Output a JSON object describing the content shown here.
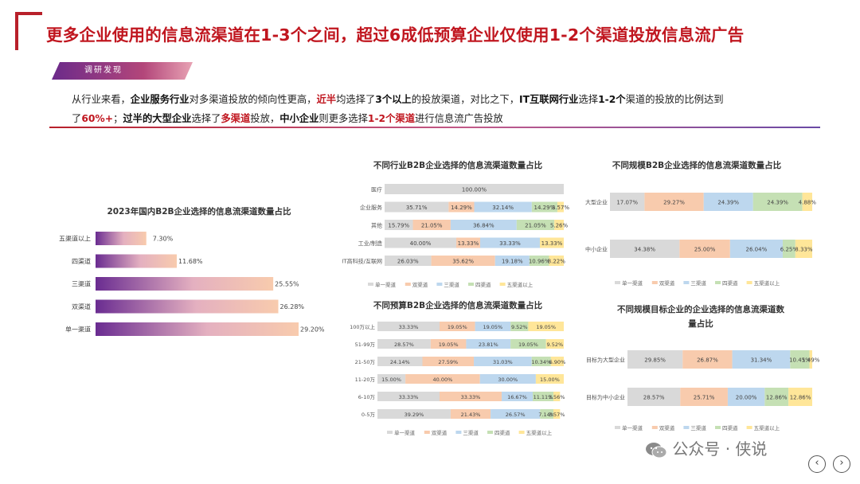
{
  "title": "更多企业使用的信息流渠道在1-3个之间，超过6成低预算企业仅使用1-2个渠道投放信息流广告",
  "tag": "调研发现",
  "description": {
    "line1": [
      {
        "t": "从行业来看，",
        "s": "n"
      },
      {
        "t": "企业服务行业",
        "s": "b"
      },
      {
        "t": "对多渠道投放的倾向性更高，",
        "s": "n"
      },
      {
        "t": "近半",
        "s": "h"
      },
      {
        "t": "均选择了",
        "s": "n"
      },
      {
        "t": "3个以上",
        "s": "b"
      },
      {
        "t": "的投放渠道，对比之下，",
        "s": "n"
      },
      {
        "t": "IT互联网行业",
        "s": "b"
      },
      {
        "t": "选择",
        "s": "n"
      },
      {
        "t": "1-2个",
        "s": "b"
      },
      {
        "t": "渠道的投放的比例达到",
        "s": "n"
      }
    ],
    "line2": [
      {
        "t": "了",
        "s": "n"
      },
      {
        "t": "60%+",
        "s": "h"
      },
      {
        "t": "；",
        "s": "n"
      },
      {
        "t": "过半的大型企业",
        "s": "b"
      },
      {
        "t": "选择了",
        "s": "n"
      },
      {
        "t": "多渠道",
        "s": "h"
      },
      {
        "t": "投放，",
        "s": "n"
      },
      {
        "t": "中小企业",
        "s": "b"
      },
      {
        "t": "则更多选择",
        "s": "n"
      },
      {
        "t": "1-2个渠道",
        "s": "h"
      },
      {
        "t": "进行信息流广告投放",
        "s": "n"
      }
    ]
  },
  "colors": {
    "single": "#d9d9d9",
    "double": "#f8cbad",
    "triple": "#bdd7ee",
    "quad": "#c5e0b4",
    "five": "#ffe699",
    "gradient_start": "#6a2c91",
    "gradient_end": "#f8cbad"
  },
  "legend_labels": [
    "单一渠道",
    "双渠道",
    "三渠道",
    "四渠道",
    "五渠道以上"
  ],
  "watermark": "公众号 · 侠说",
  "nav": {
    "prev": "‹",
    "next": "›"
  },
  "chart_data": [
    {
      "type": "bar",
      "orientation": "horizontal",
      "title": "2023年国内B2B企业选择的信息流渠道数量占比",
      "categories": [
        "五渠道以上",
        "四渠道",
        "三渠道",
        "双渠道",
        "单一渠道"
      ],
      "values": [
        7.3,
        11.68,
        25.55,
        26.28,
        29.2
      ],
      "labels": [
        "7.30%",
        "11.68%",
        "25.55%",
        "26.28%",
        "29.20%"
      ],
      "xlim": [
        0,
        29.2
      ]
    },
    {
      "type": "bar",
      "orientation": "horizontal",
      "stacked": true,
      "title": "不同行业B2B企业选择的信息流渠道数量占比",
      "categories": [
        "医疗",
        "企业服务",
        "其他",
        "工业/制造",
        "IT高科技/互联网"
      ],
      "series": [
        {
          "name": "单一渠道",
          "values": [
            100.0,
            35.71,
            15.79,
            40.0,
            26.03
          ]
        },
        {
          "name": "双渠道",
          "values": [
            0,
            14.29,
            21.05,
            13.33,
            35.62
          ]
        },
        {
          "name": "三渠道",
          "values": [
            0,
            32.14,
            36.84,
            33.33,
            19.18
          ]
        },
        {
          "name": "四渠道",
          "values": [
            0,
            14.29,
            21.05,
            0,
            10.96
          ]
        },
        {
          "name": "五渠道以上",
          "values": [
            0,
            3.57,
            5.26,
            13.33,
            8.22
          ]
        }
      ],
      "labels": [
        [
          "100.00%",
          "",
          "",
          "",
          ""
        ],
        [
          "35.71%",
          "14.29%",
          "32.14%",
          "14.29%",
          "3.57%"
        ],
        [
          "15.79%",
          "21.05%",
          "36.84%",
          "21.05%",
          "5.26%"
        ],
        [
          "40.00%",
          "13.33%",
          "33.33%",
          "",
          "13.33%"
        ],
        [
          "26.03%",
          "35.62%",
          "19.18%",
          "10.96%",
          "8.22%"
        ]
      ]
    },
    {
      "type": "bar",
      "orientation": "horizontal",
      "stacked": true,
      "title": "不同预算B2B企业选择的信息流渠道数量占比",
      "categories": [
        "100万以上",
        "51-99万",
        "21-50万",
        "11-20万",
        "6-10万",
        "0-5万"
      ],
      "series": [
        {
          "name": "单一渠道",
          "values": [
            33.33,
            28.57,
            24.14,
            15.0,
            33.33,
            39.29
          ]
        },
        {
          "name": "双渠道",
          "values": [
            19.05,
            19.05,
            27.59,
            40.0,
            33.33,
            21.43
          ]
        },
        {
          "name": "三渠道",
          "values": [
            19.05,
            23.81,
            31.03,
            30.0,
            16.67,
            26.57
          ]
        },
        {
          "name": "四渠道",
          "values": [
            9.52,
            19.05,
            10.34,
            0,
            11.11,
            7.14
          ]
        },
        {
          "name": "五渠道以上",
          "values": [
            19.05,
            9.52,
            6.9,
            15.0,
            3.56,
            3.57
          ]
        }
      ],
      "labels": [
        [
          "33.33%",
          "19.05%",
          "19.05%",
          "9.52%",
          "19.05%"
        ],
        [
          "28.57%",
          "19.05%",
          "23.81%",
          "19.05%",
          "9.52%"
        ],
        [
          "24.14%",
          "27.59%",
          "31.03%",
          "10.34%",
          "6.90%"
        ],
        [
          "15.00%",
          "40.00%",
          "30.00%",
          "",
          "15.00%"
        ],
        [
          "33.33%",
          "33.33%",
          "16.67%",
          "11.11%",
          "3.56%"
        ],
        [
          "39.29%",
          "21.43%",
          "26.57%",
          "7.14%",
          "3.57%"
        ]
      ]
    },
    {
      "type": "bar",
      "orientation": "horizontal",
      "stacked": true,
      "title": "不同规模B2B企业选择的信息流渠道数量占比",
      "categories": [
        "大型企业",
        "中小企业"
      ],
      "series": [
        {
          "name": "单一渠道",
          "values": [
            17.07,
            34.38
          ]
        },
        {
          "name": "双渠道",
          "values": [
            29.27,
            25.0
          ]
        },
        {
          "name": "三渠道",
          "values": [
            24.39,
            26.04
          ]
        },
        {
          "name": "四渠道",
          "values": [
            24.39,
            6.25
          ]
        },
        {
          "name": "五渠道以上",
          "values": [
            4.88,
            8.33
          ]
        }
      ],
      "labels": [
        [
          "17.07%",
          "29.27%",
          "24.39%",
          "24.39%",
          "4.88%"
        ],
        [
          "34.38%",
          "25.00%",
          "26.04%",
          "6.25%",
          "8.33%"
        ]
      ]
    },
    {
      "type": "bar",
      "orientation": "horizontal",
      "stacked": true,
      "title": "不同规模目标企业的企业选择的信息流渠道数量占比",
      "title_lines": [
        "不同规模目标企业的企业选择的信息流渠道数",
        "量占比"
      ],
      "categories": [
        "目标为大型企业",
        "目标为中小企业"
      ],
      "series": [
        {
          "name": "单一渠道",
          "values": [
            29.85,
            28.57
          ]
        },
        {
          "name": "双渠道",
          "values": [
            26.87,
            25.71
          ]
        },
        {
          "name": "三渠道",
          "values": [
            31.34,
            20.0
          ]
        },
        {
          "name": "四渠道",
          "values": [
            10.45,
            12.86
          ]
        },
        {
          "name": "五渠道以上",
          "values": [
            1.49,
            12.86
          ]
        }
      ],
      "labels": [
        [
          "29.85%",
          "26.87%",
          "31.34%",
          "10.45%",
          "1.49%"
        ],
        [
          "28.57%",
          "25.71%",
          "20.00%",
          "12.86%",
          "12.86%"
        ]
      ]
    }
  ]
}
